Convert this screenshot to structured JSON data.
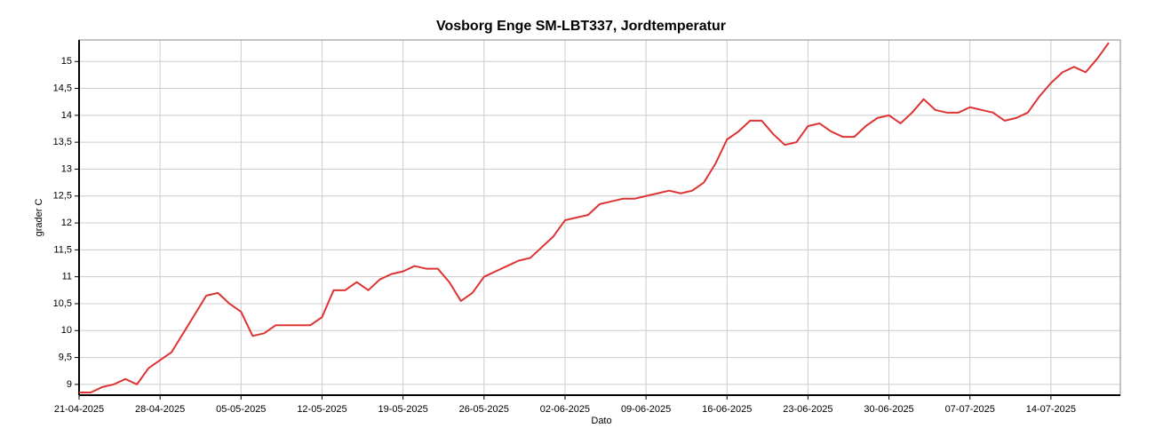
{
  "chart_data": {
    "type": "line",
    "title": "Vosborg Enge SM-LBT337, Jordtemperatur",
    "xlabel": "Dato",
    "ylabel": "grader C",
    "x": [
      "21-04-2025",
      "22-04-2025",
      "23-04-2025",
      "24-04-2025",
      "25-04-2025",
      "26-04-2025",
      "27-04-2025",
      "28-04-2025",
      "29-04-2025",
      "30-04-2025",
      "01-05-2025",
      "02-05-2025",
      "03-05-2025",
      "04-05-2025",
      "05-05-2025",
      "06-05-2025",
      "07-05-2025",
      "08-05-2025",
      "09-05-2025",
      "10-05-2025",
      "11-05-2025",
      "12-05-2025",
      "13-05-2025",
      "14-05-2025",
      "15-05-2025",
      "16-05-2025",
      "17-05-2025",
      "18-05-2025",
      "19-05-2025",
      "20-05-2025",
      "21-05-2025",
      "22-05-2025",
      "23-05-2025",
      "24-05-2025",
      "25-05-2025",
      "26-05-2025",
      "27-05-2025",
      "28-05-2025",
      "29-05-2025",
      "30-05-2025",
      "31-05-2025",
      "01-06-2025",
      "02-06-2025",
      "03-06-2025",
      "04-06-2025",
      "05-06-2025",
      "06-06-2025",
      "07-06-2025",
      "08-06-2025",
      "09-06-2025",
      "10-06-2025",
      "11-06-2025",
      "12-06-2025",
      "13-06-2025",
      "14-06-2025",
      "15-06-2025",
      "16-06-2025",
      "17-06-2025",
      "18-06-2025",
      "19-06-2025",
      "20-06-2025",
      "21-06-2025",
      "22-06-2025",
      "23-06-2025",
      "24-06-2025",
      "25-06-2025",
      "26-06-2025",
      "27-06-2025",
      "28-06-2025",
      "29-06-2025",
      "30-06-2025",
      "01-07-2025",
      "02-07-2025",
      "03-07-2025",
      "04-07-2025",
      "05-07-2025",
      "06-07-2025",
      "07-07-2025",
      "08-07-2025",
      "09-07-2025",
      "10-07-2025",
      "11-07-2025",
      "12-07-2025",
      "13-07-2025",
      "14-07-2025",
      "15-07-2025",
      "16-07-2025",
      "17-07-2025",
      "18-07-2025",
      "19-07-2025"
    ],
    "series": [
      {
        "name": "Jordtemperatur",
        "color": "#dd3333",
        "values": [
          8.85,
          8.85,
          8.95,
          9.0,
          9.1,
          9.0,
          9.3,
          9.45,
          9.6,
          9.95,
          10.3,
          10.65,
          10.7,
          10.5,
          10.35,
          9.9,
          9.95,
          10.1,
          10.1,
          10.1,
          10.1,
          10.25,
          10.75,
          10.75,
          10.9,
          10.75,
          10.95,
          11.05,
          11.1,
          11.2,
          11.15,
          11.15,
          10.9,
          10.55,
          10.7,
          11.0,
          11.1,
          11.2,
          11.3,
          11.35,
          11.55,
          11.75,
          12.05,
          12.1,
          12.15,
          12.35,
          12.4,
          12.45,
          12.45,
          12.5,
          12.55,
          12.6,
          12.55,
          12.6,
          12.75,
          13.1,
          13.55,
          13.7,
          13.9,
          13.9,
          13.65,
          13.45,
          13.5,
          13.8,
          13.85,
          13.7,
          13.6,
          13.6,
          13.8,
          13.95,
          14.0,
          13.85,
          14.05,
          14.3,
          14.1,
          14.05,
          14.05,
          14.15,
          14.1,
          14.05,
          13.9,
          13.95,
          14.05,
          14.35,
          14.6,
          14.8,
          14.9,
          14.8,
          15.05,
          15.35
        ]
      }
    ],
    "xlim": [
      "21-04-2025",
      "20-07-2025"
    ],
    "xticks": [
      "21-04-2025",
      "28-04-2025",
      "05-05-2025",
      "12-05-2025",
      "19-05-2025",
      "26-05-2025",
      "02-06-2025",
      "09-06-2025",
      "16-06-2025",
      "23-06-2025",
      "30-06-2025",
      "07-07-2025",
      "14-07-2025"
    ],
    "ylim": [
      8.8,
      15.4
    ],
    "yticks": [
      9,
      {
        "value": 9.5,
        "label": "9,5"
      },
      10,
      {
        "value": 10.5,
        "label": "10,5"
      },
      11,
      {
        "value": 11.5,
        "label": "11,5"
      },
      12,
      {
        "value": 12.5,
        "label": "12,5"
      },
      13,
      {
        "value": 13.5,
        "label": "13,5"
      },
      14,
      {
        "value": 14.5,
        "label": "14,5"
      },
      15
    ],
    "grid": true
  }
}
